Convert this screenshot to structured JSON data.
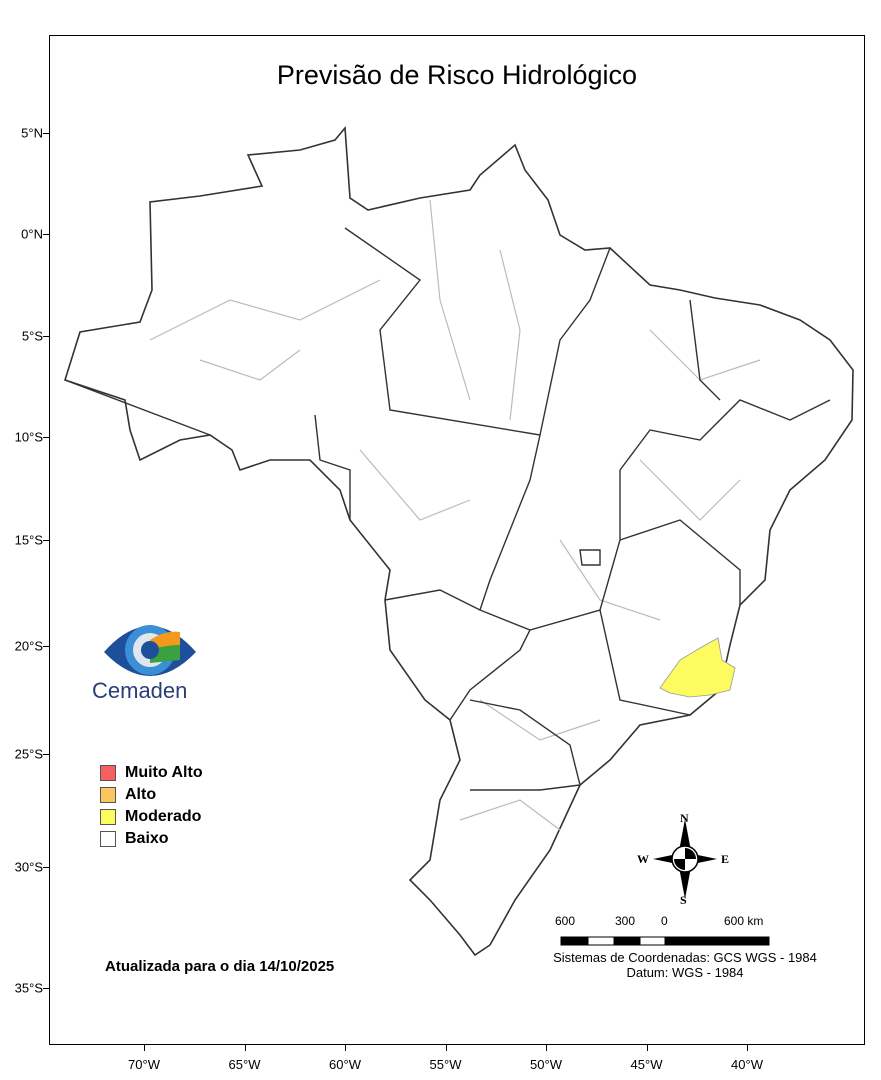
{
  "title": "Previsão de Risco Hidrológico",
  "latitude_ticks": [
    "5°N",
    "0°N",
    "5°S",
    "10°S",
    "15°S",
    "20°S",
    "25°S",
    "30°S",
    "35°S"
  ],
  "longitude_ticks": [
    "70°W",
    "65°W",
    "60°W",
    "55°W",
    "50°W",
    "45°W",
    "40°W"
  ],
  "legend": [
    {
      "label": "Muito Alto",
      "color": "#f76060"
    },
    {
      "label": "Alto",
      "color": "#fcc560"
    },
    {
      "label": "Moderado",
      "color": "#fcfc60"
    },
    {
      "label": "Baixo",
      "color": "#ffffff"
    }
  ],
  "risk_areas": [
    {
      "level": "Moderado",
      "region": "southeast (Minas Gerais / Rio de Janeiro / Espírito Santo border)"
    }
  ],
  "updated": "Atualizada para o dia 14/10/2025",
  "logo": "Cemaden",
  "compass": {
    "n": "N",
    "s": "S",
    "e": "E",
    "w": "W"
  },
  "scale": {
    "labels": [
      "600",
      "300",
      "0",
      "600 km"
    ]
  },
  "coordinate_system": "Sistemas de Coordenadas: GCS WGS - 1984",
  "datum": "Datum: WGS - 1984"
}
